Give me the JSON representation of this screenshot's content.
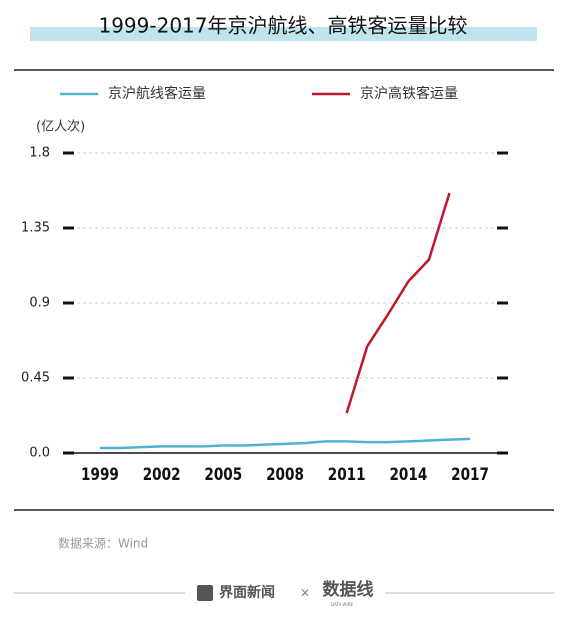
{
  "chart_data": {
    "type": "line",
    "title": "1999-2017年京沪航线、高铁客运量比较",
    "y_label": "(亿人次)",
    "source": "数据来源：Wind",
    "footer": {
      "brand": "界面新闻",
      "separator": "×",
      "logo": "数据线",
      "logo_sub": "DATA WIRE"
    },
    "x": [
      1999,
      2000,
      2001,
      2002,
      2003,
      2004,
      2005,
      2006,
      2007,
      2008,
      2009,
      2010,
      2011,
      2012,
      2013,
      2014,
      2015,
      2016,
      2017
    ],
    "series": [
      {
        "name": "京沪航线客运量",
        "color": "#4fb3cf",
        "values": [
          0.03,
          0.03,
          0.035,
          0.04,
          0.04,
          0.04,
          0.045,
          0.045,
          0.05,
          0.055,
          0.06,
          0.07,
          0.07,
          0.065,
          0.065,
          0.07,
          0.075,
          0.08,
          0.085
        ]
      },
      {
        "name": "京沪高铁客运量",
        "color": "#c0182a",
        "values": [
          null,
          null,
          null,
          null,
          null,
          null,
          null,
          null,
          null,
          null,
          null,
          null,
          0.24,
          0.64,
          0.83,
          1.03,
          1.16,
          1.56,
          null
        ]
      }
    ],
    "xlim": [
      1997.3,
      2018.7
    ],
    "xticks": [
      1999,
      2002,
      2005,
      2008,
      2011,
      2014,
      2017
    ],
    "ylim": [
      0,
      1.8
    ],
    "yticks": [
      {
        "value": 0,
        "label": "0.0"
      },
      0.45,
      0.9,
      1.35,
      1.8
    ],
    "grid": true
  }
}
